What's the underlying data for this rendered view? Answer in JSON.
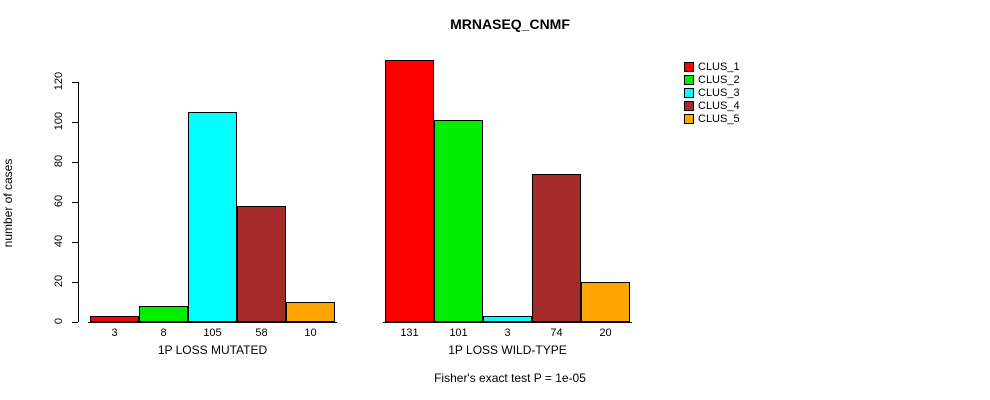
{
  "chart_data": {
    "type": "bar",
    "title": "MRNASEQ_CNMF",
    "ylabel": "number of cases",
    "yticks": [
      0,
      20,
      40,
      60,
      80,
      100,
      120
    ],
    "ylim": [
      0,
      135
    ],
    "grid": false,
    "legend_position": "right",
    "series": [
      {
        "name": "CLUS_1",
        "color": "#ff0000"
      },
      {
        "name": "CLUS_2",
        "color": "#00ee00"
      },
      {
        "name": "CLUS_3",
        "color": "#00ffff"
      },
      {
        "name": "CLUS_4",
        "color": "#a52a2a"
      },
      {
        "name": "CLUS_5",
        "color": "#ffa500"
      }
    ],
    "groups": [
      {
        "label": "1P LOSS MUTATED",
        "values": [
          3,
          8,
          105,
          58,
          10
        ]
      },
      {
        "label": "1P LOSS WILD-TYPE",
        "values": [
          131,
          101,
          3,
          74,
          20
        ]
      }
    ],
    "annotation": "Fisher's exact test P = 1e-05"
  }
}
